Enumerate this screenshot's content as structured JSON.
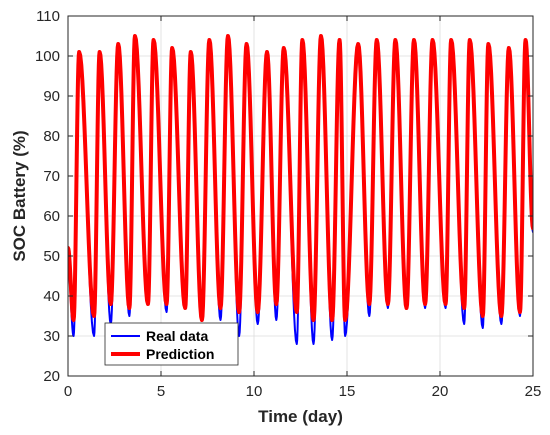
{
  "chart_data": {
    "type": "line",
    "title": "",
    "xlabel": "Time (day)",
    "ylabel": "SOC Battery (%)",
    "xlim": [
      0,
      25
    ],
    "ylim": [
      20,
      110
    ],
    "xticks": [
      "0",
      "5",
      "10",
      "15",
      "20",
      "25"
    ],
    "yticks": [
      "20",
      "30",
      "40",
      "50",
      "60",
      "70",
      "80",
      "90",
      "100",
      "110"
    ],
    "grid": true,
    "legend_position": "bottom-left",
    "series": [
      {
        "name": "Real data",
        "color": "#0000ff",
        "peaks": [
          [
            0.6,
            100
          ],
          [
            1.7,
            100
          ],
          [
            2.7,
            102
          ],
          [
            3.6,
            104
          ],
          [
            4.6,
            103
          ],
          [
            5.6,
            101
          ],
          [
            6.6,
            100
          ],
          [
            7.6,
            103
          ],
          [
            8.6,
            105
          ],
          [
            9.6,
            102
          ],
          [
            10.7,
            100
          ],
          [
            11.6,
            101
          ],
          [
            12.6,
            103
          ],
          [
            13.6,
            104
          ],
          [
            14.6,
            103
          ],
          [
            15.6,
            102
          ],
          [
            16.6,
            103
          ],
          [
            17.6,
            103
          ],
          [
            18.6,
            103
          ],
          [
            19.6,
            103
          ],
          [
            20.6,
            103
          ],
          [
            21.6,
            103
          ],
          [
            22.6,
            102
          ],
          [
            23.7,
            101
          ],
          [
            24.6,
            103
          ]
        ],
        "troughs": [
          [
            0,
            48
          ],
          [
            0.3,
            30
          ],
          [
            1.4,
            30
          ],
          [
            2.3,
            33
          ],
          [
            3.3,
            35
          ],
          [
            4.3,
            40
          ],
          [
            5.3,
            36
          ],
          [
            6.3,
            37
          ],
          [
            7.2,
            37
          ],
          [
            8.2,
            34
          ],
          [
            9.2,
            30
          ],
          [
            10.2,
            33
          ],
          [
            11.2,
            34
          ],
          [
            12.3,
            28
          ],
          [
            13.2,
            28
          ],
          [
            14.2,
            29
          ],
          [
            14.9,
            30
          ],
          [
            16.2,
            35
          ],
          [
            17.2,
            37
          ],
          [
            18.2,
            38
          ],
          [
            19.2,
            37
          ],
          [
            20.3,
            37
          ],
          [
            21.3,
            33
          ],
          [
            22.3,
            32
          ],
          [
            23.3,
            33
          ],
          [
            24.3,
            35
          ],
          [
            25,
            56
          ]
        ]
      },
      {
        "name": "Prediction",
        "color": "#ff0000",
        "peaks": [
          [
            0.6,
            101
          ],
          [
            1.7,
            101
          ],
          [
            2.7,
            103
          ],
          [
            3.6,
            105
          ],
          [
            4.6,
            104
          ],
          [
            5.6,
            102
          ],
          [
            6.6,
            101
          ],
          [
            7.6,
            104
          ],
          [
            8.6,
            105
          ],
          [
            9.6,
            103
          ],
          [
            10.7,
            101
          ],
          [
            11.6,
            102
          ],
          [
            12.6,
            104
          ],
          [
            13.6,
            105
          ],
          [
            14.6,
            104
          ],
          [
            15.6,
            103
          ],
          [
            16.6,
            104
          ],
          [
            17.6,
            104
          ],
          [
            18.6,
            104
          ],
          [
            19.6,
            104
          ],
          [
            20.6,
            104
          ],
          [
            21.6,
            104
          ],
          [
            22.6,
            103
          ],
          [
            23.7,
            102
          ],
          [
            24.6,
            104
          ]
        ],
        "troughs": [
          [
            0,
            52
          ],
          [
            0.3,
            34
          ],
          [
            1.4,
            35
          ],
          [
            2.3,
            38
          ],
          [
            3.3,
            37
          ],
          [
            4.3,
            38
          ],
          [
            5.3,
            38
          ],
          [
            6.3,
            37
          ],
          [
            7.2,
            34
          ],
          [
            8.2,
            37
          ],
          [
            9.2,
            36
          ],
          [
            10.2,
            36
          ],
          [
            11.2,
            38
          ],
          [
            12.3,
            36
          ],
          [
            13.2,
            34
          ],
          [
            14.2,
            34
          ],
          [
            14.9,
            34
          ],
          [
            16.2,
            38
          ],
          [
            17.2,
            38
          ],
          [
            18.2,
            37
          ],
          [
            19.2,
            38
          ],
          [
            20.3,
            38
          ],
          [
            21.3,
            37
          ],
          [
            22.3,
            35
          ],
          [
            23.3,
            35
          ],
          [
            24.3,
            36
          ],
          [
            25,
            57
          ]
        ]
      }
    ]
  }
}
